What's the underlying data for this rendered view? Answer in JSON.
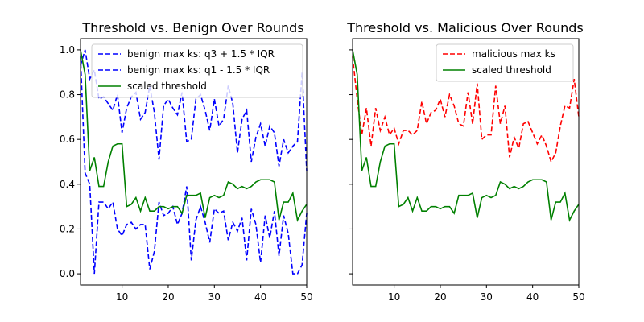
{
  "chart_data": [
    {
      "type": "line",
      "title": "Threshold vs. Benign Over Rounds",
      "xlabel": "",
      "ylabel": "",
      "xlim": [
        1,
        50
      ],
      "ylim": [
        -0.05,
        1.05
      ],
      "xticks": [
        10,
        20,
        30,
        40,
        50
      ],
      "yticks": [
        0.0,
        0.2,
        0.4,
        0.6,
        0.8,
        1.0
      ],
      "ytick_labels": [
        "0.0",
        "0.2",
        "0.4",
        "0.6",
        "0.8",
        "1.0"
      ],
      "legend_position": "top-right",
      "series": [
        {
          "name": "benign max ks: q3 + 1.5 * IQR",
          "color": "#0000ff",
          "style": "dashed",
          "x": [
            1,
            2,
            3,
            4,
            5,
            6,
            7,
            8,
            9,
            10,
            11,
            12,
            13,
            14,
            15,
            16,
            17,
            18,
            19,
            20,
            21,
            22,
            23,
            24,
            25,
            26,
            27,
            28,
            29,
            30,
            31,
            32,
            33,
            34,
            35,
            36,
            37,
            38,
            39,
            40,
            41,
            42,
            43,
            44,
            45,
            46,
            47,
            48,
            49,
            50
          ],
          "y": [
            0.93,
            1.0,
            0.87,
            0.91,
            0.78,
            0.79,
            0.76,
            0.73,
            0.8,
            0.63,
            0.74,
            0.79,
            0.81,
            0.69,
            0.72,
            0.84,
            0.72,
            0.51,
            0.75,
            0.78,
            0.74,
            0.71,
            0.81,
            0.59,
            0.6,
            0.78,
            0.8,
            0.73,
            0.64,
            0.78,
            0.66,
            0.69,
            0.84,
            0.76,
            0.54,
            0.69,
            0.73,
            0.5,
            0.61,
            0.67,
            0.57,
            0.66,
            0.63,
            0.48,
            0.6,
            0.54,
            0.57,
            0.59,
            0.9,
            0.46
          ]
        },
        {
          "name": "benign max ks: q1 - 1.5 * IQR",
          "color": "#0000ff",
          "style": "dashed",
          "x": [
            1,
            2,
            3,
            4,
            5,
            6,
            7,
            8,
            9,
            10,
            11,
            12,
            13,
            14,
            15,
            16,
            17,
            18,
            19,
            20,
            21,
            22,
            23,
            24,
            25,
            26,
            27,
            28,
            29,
            30,
            31,
            32,
            33,
            34,
            35,
            36,
            37,
            38,
            39,
            40,
            41,
            42,
            43,
            44,
            45,
            46,
            47,
            48,
            49,
            50
          ],
          "y": [
            0.97,
            0.45,
            0.4,
            0.0,
            0.32,
            0.32,
            0.29,
            0.32,
            0.2,
            0.17,
            0.22,
            0.23,
            0.2,
            0.22,
            0.22,
            0.02,
            0.1,
            0.32,
            0.26,
            0.27,
            0.3,
            0.22,
            0.27,
            0.39,
            0.06,
            0.24,
            0.3,
            0.23,
            0.14,
            0.29,
            0.27,
            0.28,
            0.15,
            0.23,
            0.19,
            0.25,
            0.06,
            0.29,
            0.22,
            0.05,
            0.26,
            0.16,
            0.28,
            0.08,
            0.26,
            0.18,
            0.0,
            0.0,
            0.04,
            0.27
          ]
        },
        {
          "name": "scaled threshold",
          "color": "#008000",
          "style": "solid",
          "x": [
            1,
            2,
            3,
            4,
            5,
            6,
            7,
            8,
            9,
            10,
            11,
            12,
            13,
            14,
            15,
            16,
            17,
            18,
            19,
            20,
            21,
            22,
            23,
            24,
            25,
            26,
            27,
            28,
            29,
            30,
            31,
            32,
            33,
            34,
            35,
            36,
            37,
            38,
            39,
            40,
            41,
            42,
            43,
            44,
            45,
            46,
            47,
            48,
            49,
            50
          ],
          "y": [
            1.0,
            0.89,
            0.46,
            0.52,
            0.39,
            0.39,
            0.5,
            0.57,
            0.58,
            0.58,
            0.3,
            0.31,
            0.34,
            0.28,
            0.34,
            0.28,
            0.28,
            0.3,
            0.3,
            0.29,
            0.3,
            0.3,
            0.27,
            0.35,
            0.35,
            0.35,
            0.36,
            0.25,
            0.34,
            0.35,
            0.34,
            0.35,
            0.41,
            0.4,
            0.38,
            0.39,
            0.38,
            0.39,
            0.41,
            0.42,
            0.42,
            0.42,
            0.41,
            0.24,
            0.32,
            0.32,
            0.36,
            0.24,
            0.28,
            0.31
          ]
        }
      ]
    },
    {
      "type": "line",
      "title": "Threshold vs. Malicious Over Rounds",
      "xlabel": "",
      "ylabel": "",
      "xlim": [
        1,
        50
      ],
      "ylim": [
        -0.05,
        1.05
      ],
      "xticks": [
        10,
        20,
        30,
        40,
        50
      ],
      "shared_y": true,
      "legend_position": "top-right",
      "series": [
        {
          "name": "malicious max ks",
          "color": "#ff0000",
          "style": "dashed",
          "x": [
            1,
            2,
            3,
            4,
            5,
            6,
            7,
            8,
            9,
            10,
            11,
            12,
            13,
            14,
            15,
            16,
            17,
            18,
            19,
            20,
            21,
            22,
            23,
            24,
            25,
            26,
            27,
            28,
            29,
            30,
            31,
            32,
            33,
            34,
            35,
            36,
            37,
            38,
            39,
            40,
            41,
            42,
            43,
            44,
            45,
            46,
            47,
            48,
            49,
            50
          ],
          "y": [
            0.97,
            0.78,
            0.62,
            0.74,
            0.57,
            0.74,
            0.64,
            0.7,
            0.62,
            0.65,
            0.58,
            0.64,
            0.64,
            0.62,
            0.64,
            0.77,
            0.67,
            0.72,
            0.73,
            0.78,
            0.7,
            0.8,
            0.75,
            0.67,
            0.66,
            0.81,
            0.67,
            0.85,
            0.6,
            0.62,
            0.62,
            0.84,
            0.67,
            0.75,
            0.52,
            0.61,
            0.56,
            0.67,
            0.68,
            0.63,
            0.58,
            0.62,
            0.57,
            0.5,
            0.54,
            0.66,
            0.75,
            0.74,
            0.87,
            0.7
          ]
        },
        {
          "name": "scaled threshold",
          "color": "#008000",
          "style": "solid",
          "x": [
            1,
            2,
            3,
            4,
            5,
            6,
            7,
            8,
            9,
            10,
            11,
            12,
            13,
            14,
            15,
            16,
            17,
            18,
            19,
            20,
            21,
            22,
            23,
            24,
            25,
            26,
            27,
            28,
            29,
            30,
            31,
            32,
            33,
            34,
            35,
            36,
            37,
            38,
            39,
            40,
            41,
            42,
            43,
            44,
            45,
            46,
            47,
            48,
            49,
            50
          ],
          "y": [
            1.0,
            0.89,
            0.46,
            0.52,
            0.39,
            0.39,
            0.5,
            0.57,
            0.58,
            0.58,
            0.3,
            0.31,
            0.34,
            0.28,
            0.34,
            0.28,
            0.28,
            0.3,
            0.3,
            0.29,
            0.3,
            0.3,
            0.27,
            0.35,
            0.35,
            0.35,
            0.36,
            0.25,
            0.34,
            0.35,
            0.34,
            0.35,
            0.41,
            0.4,
            0.38,
            0.39,
            0.38,
            0.39,
            0.41,
            0.42,
            0.42,
            0.42,
            0.41,
            0.24,
            0.32,
            0.32,
            0.36,
            0.24,
            0.28,
            0.31
          ]
        }
      ]
    }
  ]
}
